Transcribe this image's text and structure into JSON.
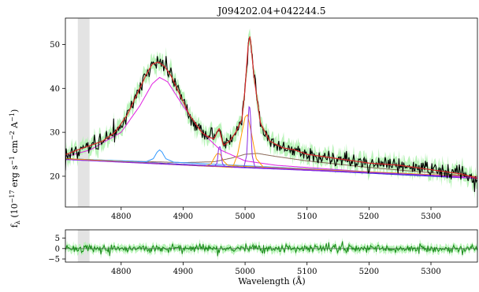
{
  "chart_data": [
    {
      "type": "line",
      "title": "J094202.04+042244.5",
      "xlabel": "",
      "ylabel": "f_λ (10^-17 erg s^-1 cm^-2 A^-1)",
      "ylabel_parts": {
        "main": "f",
        "sub": "λ",
        "pre": " (10",
        "exp1": "−17",
        "mid1": " erg s",
        "exp2": "−1",
        "mid2": " cm",
        "exp3": "−2",
        "mid3": " A",
        "exp4": "−1",
        "post": ")"
      },
      "xlim": [
        4710,
        5375
      ],
      "ylim": [
        13,
        56
      ],
      "xticks": [
        4800,
        4900,
        5000,
        5100,
        5200,
        5300
      ],
      "yticks": [
        20,
        30,
        40,
        50
      ],
      "grid": false,
      "shaded_band_x": [
        4730,
        4749
      ],
      "series": [
        {
          "id": "data",
          "color": "#000000",
          "x": [
            4712,
            4730,
            4750,
            4770,
            4790,
            4800,
            4810,
            4820,
            4830,
            4840,
            4850,
            4860,
            4870,
            4880,
            4890,
            4900,
            4910,
            4920,
            4930,
            4940,
            4950,
            4958,
            4965,
            4975,
            4985,
            4995,
            5000,
            5005,
            5008,
            5015,
            5025,
            5040,
            5060,
            5080,
            5100,
            5150,
            5200,
            5250,
            5300,
            5350,
            5375
          ],
          "y": [
            25,
            26,
            27,
            28,
            30,
            32,
            34,
            37,
            40,
            43,
            45.5,
            46,
            45,
            43,
            40,
            37,
            34,
            32,
            30,
            29,
            28.5,
            31,
            27,
            28,
            30,
            33,
            40,
            50,
            52,
            42,
            32,
            28,
            26.5,
            26,
            25,
            24,
            23,
            22.5,
            21.5,
            20.5,
            19.5
          ]
        },
        {
          "id": "error-band",
          "color": "#b2f2b2",
          "sigma": 1.5
        },
        {
          "id": "total-fit",
          "color": "#d62728",
          "x": [
            4712,
            4730,
            4750,
            4770,
            4790,
            4800,
            4810,
            4820,
            4830,
            4840,
            4850,
            4860,
            4870,
            4880,
            4890,
            4900,
            4910,
            4920,
            4930,
            4940,
            4950,
            4958,
            4965,
            4975,
            4985,
            4995,
            5000,
            5005,
            5008,
            5015,
            5025,
            5040,
            5060,
            5080,
            5100,
            5150,
            5200,
            5250,
            5300,
            5350,
            5375
          ],
          "y": [
            25,
            26,
            27,
            28,
            30,
            32,
            34,
            37,
            40,
            43,
            45.5,
            46,
            45,
            43,
            40,
            37,
            34,
            32,
            30,
            29,
            28.5,
            31,
            27,
            28,
            30,
            33,
            40,
            50,
            52,
            42,
            32,
            28,
            26.5,
            26,
            25,
            24,
            23,
            22.5,
            21.5,
            20.5,
            19.5
          ]
        },
        {
          "id": "broad-hbeta",
          "color": "#e020e0",
          "x": [
            4712,
            4750,
            4800,
            4830,
            4850,
            4862,
            4875,
            4900,
            4930,
            4960,
            5000,
            5050,
            5100,
            5200,
            5300,
            5375
          ],
          "y": [
            24.5,
            26,
            30,
            36,
            41,
            42.5,
            41.5,
            36,
            30,
            26,
            23.5,
            22.5,
            22,
            21,
            20.2,
            19.5
          ]
        },
        {
          "id": "continuum",
          "color": "#2020d0",
          "x": [
            4712,
            5375
          ],
          "y": [
            24,
            19.5
          ]
        },
        {
          "id": "narrow-hbeta",
          "color": "#3399ff",
          "x": [
            4712,
            4840,
            4852,
            4858,
            4862,
            4866,
            4872,
            4885,
            5375
          ],
          "y": [
            24,
            23.3,
            24,
            25.5,
            26,
            25.5,
            24,
            23.2,
            19.8
          ]
        },
        {
          "id": "fe-template",
          "color": "#8b6b5a",
          "x": [
            4712,
            4800,
            4900,
            4950,
            4980,
            5000,
            5020,
            5050,
            5100,
            5200,
            5375
          ],
          "y": [
            24,
            23.5,
            23.1,
            23.3,
            24.2,
            25,
            25.2,
            24.5,
            23.5,
            22,
            19.9
          ]
        },
        {
          "id": "oiii-wing-4959",
          "color": "#ff9900",
          "x": [
            4712,
            4935,
            4945,
            4952,
            4955,
            4960,
            4965,
            4972,
            4990,
            5375
          ],
          "y": [
            24,
            22.3,
            22.8,
            24.6,
            25.2,
            25,
            23.5,
            22.5,
            22.3,
            19.9
          ]
        },
        {
          "id": "oiii-core-4959",
          "color": "#8a2be2",
          "x": [
            4712,
            4950,
            4955,
            4957,
            4959,
            4961,
            4963,
            4968,
            5375
          ],
          "y": [
            23.8,
            22.2,
            23,
            26,
            27,
            26,
            23,
            22.1,
            19.8
          ]
        },
        {
          "id": "oiii-wing-5007",
          "color": "#ff9900",
          "x": [
            4712,
            4980,
            4988,
            4995,
            5000,
            5004,
            5010,
            5018,
            5030,
            5375
          ],
          "y": [
            24,
            22,
            25,
            30,
            33.5,
            34,
            30,
            24,
            22,
            19.9
          ]
        },
        {
          "id": "oiii-core-5007",
          "color": "#8a2be2",
          "x": [
            4712,
            4998,
            5003,
            5005,
            5007,
            5009,
            5011,
            5016,
            5375
          ],
          "y": [
            23.8,
            22,
            25,
            33,
            37,
            33,
            25,
            22,
            19.8
          ]
        }
      ]
    },
    {
      "type": "line",
      "title": "",
      "xlabel": "Wavelength (Å)",
      "ylabel": "",
      "xlim": [
        4710,
        5375
      ],
      "ylim": [
        -6.5,
        9
      ],
      "xticks": [
        4800,
        4900,
        5000,
        5100,
        5200,
        5300
      ],
      "yticks": [
        -5,
        0,
        5
      ],
      "ytick_labels": [
        "−5",
        "0",
        "5"
      ],
      "grid": false,
      "shaded_band_x": [
        4730,
        4749
      ],
      "series": [
        {
          "id": "residual",
          "color": "#1a8a1a",
          "x": [
            4712,
            5375
          ],
          "y": [
            0,
            0
          ]
        },
        {
          "id": "residual-error-band",
          "color": "#b2f2b2",
          "sigma": 1.6
        }
      ]
    }
  ]
}
